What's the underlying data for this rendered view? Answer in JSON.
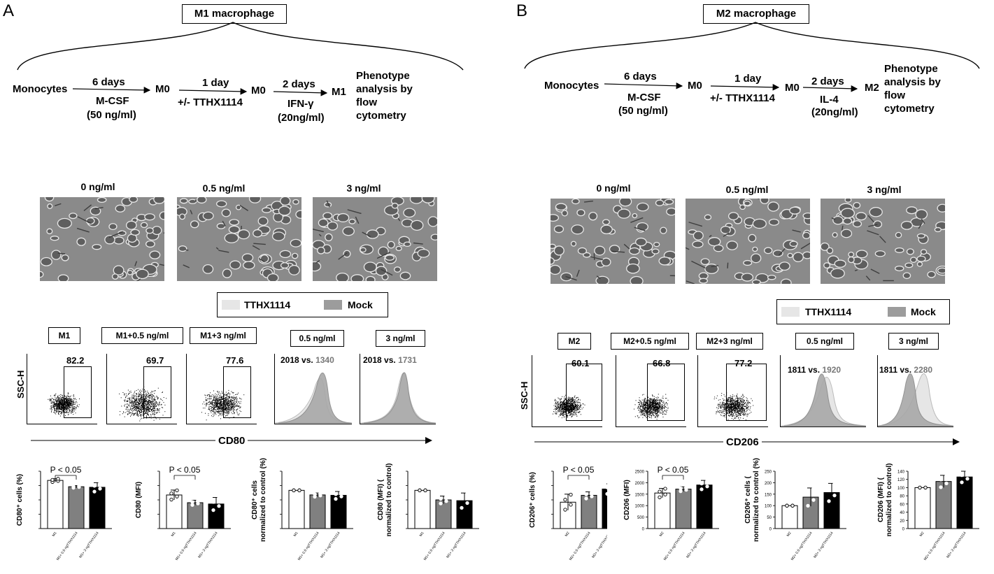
{
  "panels": [
    {
      "letter": "A",
      "title": "M1 macrophage",
      "workflow": {
        "start": "Monocytes",
        "step1_top": "6 days",
        "step1_bottom": "M-CSF",
        "step1_bottom2": "(50 ng/ml)",
        "m0a": "M0",
        "step2_top": "1 day",
        "step2_bottom": "+/- TTHX1114",
        "m0b": "M0",
        "step3_top": "2 days",
        "step3_bottom": "IFN-γ",
        "step3_bottom2": "(20ng/ml)",
        "end": "M1",
        "analysis": [
          "Phenotype",
          "analysis by",
          "flow",
          "cytometry"
        ]
      },
      "concentrations": [
        "0 ng/ml",
        "0.5 ng/ml",
        "3 ng/ml"
      ],
      "legend": {
        "tthx": "TTHX1114",
        "mock": "Mock"
      },
      "flow": {
        "gates": [
          "M1",
          "M1+0.5 ng/ml",
          "M1+3 ng/ml"
        ],
        "gate_values": [
          "82.2",
          "69.7",
          "77.6"
        ],
        "hist_labels": [
          "0.5 ng/ml",
          "3 ng/ml"
        ],
        "mfi_left": [
          "2018 vs.",
          "2018 vs."
        ],
        "mfi_right": [
          "1340",
          "1731"
        ],
        "y_label": "SSC-H",
        "x_label": "CD80"
      }
    },
    {
      "letter": "B",
      "title": "M2 macrophage",
      "workflow": {
        "start": "Monocytes",
        "step1_top": "6 days",
        "step1_bottom": "M-CSF",
        "step1_bottom2": "(50 ng/ml)",
        "m0a": "M0",
        "step2_top": "1 day",
        "step2_bottom": "+/- TTHX1114",
        "m0b": "M0",
        "step3_top": "2 days",
        "step3_bottom": "IL-4",
        "step3_bottom2": "(20ng/ml)",
        "end": "M2",
        "analysis": [
          "Phenotype",
          "analysis by",
          "flow",
          "cytometry"
        ]
      },
      "concentrations": [
        "0 ng/ml",
        "0.5 ng/ml",
        "3 ng/ml"
      ],
      "legend": {
        "tthx": "TTHX1114",
        "mock": "Mock"
      },
      "flow": {
        "gates": [
          "M2",
          "M2+0.5 ng/ml",
          "M2+3 ng/ml"
        ],
        "gate_values": [
          "60.1",
          "66.8",
          "77.2"
        ],
        "hist_labels": [
          "0.5 ng/ml",
          "3 ng/ml"
        ],
        "mfi_left": [
          "1811 vs.",
          "1811 vs."
        ],
        "mfi_right": [
          "1920",
          "2280"
        ],
        "y_label": "SSC-H",
        "x_label": "CD206"
      }
    }
  ],
  "chart_data": [
    {
      "type": "bar",
      "panel": "A",
      "ylabel": "CD80⁺ cells (%)",
      "categories": [
        "M1",
        "M1+ 0.5 ngTTHX1114",
        "M1+ 3 ngTTHX1114"
      ],
      "values": [
        84,
        73,
        72
      ],
      "err": [
        3,
        2,
        8
      ],
      "ylim": [
        0,
        100
      ],
      "yticks": [],
      "annotation": "P < 0.05",
      "fills": [
        "#ffffff",
        "#808080",
        "#000000"
      ]
    },
    {
      "type": "bar",
      "panel": "A",
      "ylabel": "CD80 (MFI)",
      "categories": [
        "M1",
        "M1+ 0.5 ngTTHX1114",
        "M1+ 3 ngTTHX1114"
      ],
      "values": [
        2050,
        1580,
        1500
      ],
      "err": [
        300,
        150,
        400
      ],
      "ylim": [
        0,
        3500
      ],
      "yticks": [],
      "annotation": "P < 0.05",
      "fills": [
        "#ffffff",
        "#808080",
        "#000000"
      ]
    },
    {
      "type": "bar",
      "panel": "A",
      "ylabel": "CD80⁺ cells normalized to control  (%)",
      "categories": [
        "M1",
        "M1+ 0.5 ngTTHX1114",
        "M1+ 3 ngTTHX1114"
      ],
      "values": [
        100,
        88,
        87
      ],
      "err": [
        0,
        5,
        10
      ],
      "ylim": [
        0,
        150
      ],
      "yticks": [],
      "annotation": "",
      "fills": [
        "#ffffff",
        "#808080",
        "#000000"
      ]
    },
    {
      "type": "bar",
      "panel": "A",
      "ylabel": "CD80 (MFI) ( normalized to control)",
      "categories": [
        "M1",
        "M1+ 0.5 ngTTHX1114",
        "M1+ 3 ngTTHX1114"
      ],
      "values": [
        100,
        75,
        73
      ],
      "err": [
        0,
        10,
        20
      ],
      "ylim": [
        0,
        150
      ],
      "yticks": [],
      "annotation": "",
      "fills": [
        "#ffffff",
        "#808080",
        "#000000"
      ]
    },
    {
      "type": "bar",
      "panel": "B",
      "ylabel": "CD206⁺ cells  (%)",
      "categories": [
        "M2",
        "M2+ 0.5 ngTTHX1114",
        "M2+ 3 ngTTHX1114"
      ],
      "values": [
        46,
        58,
        69
      ],
      "err": [
        14,
        6,
        9
      ],
      "ylim": [
        0,
        100
      ],
      "yticks": [],
      "annotation": "P < 0.05",
      "fills": [
        "#ffffff",
        "#808080",
        "#000000"
      ]
    },
    {
      "type": "bar",
      "panel": "B",
      "ylabel": "CD206 (MFI)",
      "categories": [
        "M2",
        "M2+ 0.5 ngTTHX1114",
        "M2+ 3 ngTTHX1114"
      ],
      "values": [
        1550,
        1720,
        1900
      ],
      "err": [
        200,
        100,
        200
      ],
      "ylim": [
        0,
        2500
      ],
      "yticks": [
        "0",
        "500",
        "1000",
        "1500",
        "2000",
        "2500"
      ],
      "annotation": "P < 0.05",
      "fills": [
        "#ffffff",
        "#808080",
        "#000000"
      ]
    },
    {
      "type": "bar",
      "panel": "B",
      "ylabel": "CD206⁺ cells (normalized to control (%)",
      "categories": [
        "M2",
        "M2+ 0.5 ngTTHX1114",
        "M2+ 3 ngTTHX1114"
      ],
      "values": [
        100,
        137,
        157
      ],
      "err": [
        0,
        40,
        40
      ],
      "ylim": [
        0,
        250
      ],
      "yticks": [
        "0",
        "50",
        "100",
        "150",
        "200",
        "250"
      ],
      "annotation": "",
      "fills": [
        "#ffffff",
        "#808080",
        "#000000"
      ]
    },
    {
      "type": "bar",
      "panel": "B",
      "ylabel": "CD206 (MFI) (normalized to control)",
      "categories": [
        "M2",
        "M2+ 0.5 ngTTHX1114",
        "M2+ 3 ngTTHX1114"
      ],
      "values": [
        100,
        115,
        126
      ],
      "err": [
        0,
        15,
        14
      ],
      "ylim": [
        0,
        140
      ],
      "yticks": [
        "0",
        "20",
        "40",
        "60",
        "80",
        "100",
        "120",
        "140"
      ],
      "annotation": "",
      "fills": [
        "#ffffff",
        "#808080",
        "#000000"
      ]
    }
  ]
}
